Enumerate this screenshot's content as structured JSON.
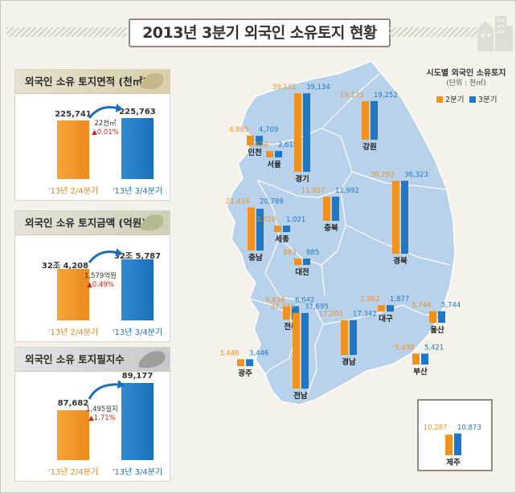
{
  "title": "2013년 3분기 외국인 소유토지 현황",
  "colors": {
    "q2": "#f0921f",
    "q3": "#1e78c6",
    "map": "#b9d2ec"
  },
  "panels": [
    {
      "heading": "외국인 소유 토지면적 (천㎡)",
      "q2_label": "225,741",
      "q3_label": "225,763",
      "q2_value": 225741,
      "q3_value": 225763,
      "diff_line1": "22천㎡",
      "diff_line2": "▲0.01%",
      "cat_q2": "'13년 2/4분기",
      "cat_q3": "'13년 3/4분기"
    },
    {
      "heading": "외국인 소유 토지금액 (억원)",
      "q2_label": "32조 4,208",
      "q3_label": "32조 5,787",
      "q2_value": 324208,
      "q3_value": 325787,
      "diff_line1": "1,579억원",
      "diff_line2": "▲0.49%",
      "cat_q2": "'13년 2/4분기",
      "cat_q3": "'13년 3/4분기"
    },
    {
      "heading": "외국인 소유 토지필지수",
      "q2_label": "87,682",
      "q3_label": "89,177",
      "q2_value": 87682,
      "q3_value": 89177,
      "diff_line1": "1,495필지",
      "diff_line2": "▲1.71%",
      "cat_q2": "'13년 2/4분기",
      "cat_q3": "'13년 3/4분기"
    }
  ],
  "map_legend": {
    "title": "시도별 외국인 소유토지",
    "unit": "(단위 : 천㎡)",
    "q2": "2분기",
    "q3": "3분기"
  },
  "chart_data": {
    "type": "bar",
    "categories": [
      "인천",
      "서울",
      "경기",
      "강원",
      "충남",
      "세종",
      "충북",
      "대전",
      "경북",
      "전북",
      "대구",
      "울산",
      "경남",
      "부산",
      "광주",
      "전남",
      "제주"
    ],
    "series": [
      {
        "name": "2분기",
        "values": [
          4885,
          2629,
          39131,
          19173,
          21434,
          1020,
          11957,
          883,
          36293,
          6638,
          1862,
          5744,
          17200,
          5438,
          3446,
          37721,
          10287
        ]
      },
      {
        "name": "3분기",
        "values": [
          4709,
          2618,
          39134,
          19252,
          20789,
          1021,
          11992,
          885,
          36323,
          6642,
          1877,
          5744,
          17342,
          5421,
          3446,
          37695,
          10873
        ]
      }
    ],
    "value_labels_q2": [
      "4,885",
      "2,629",
      "39,131",
      "19,173",
      "21,434",
      "1,020",
      "11,957",
      "883",
      "36,293",
      "6,638",
      "1,862",
      "5,744",
      "17,200",
      "5,438",
      "3,446",
      "37,721",
      "10,287"
    ],
    "value_labels_q3": [
      "4,709",
      "2,618",
      "39,134",
      "19,252",
      "20,789",
      "1,021",
      "11,992",
      "885",
      "36,323",
      "6,642",
      "1,877",
      "5,744",
      "17,342",
      "5,421",
      "3,446",
      "37,695",
      "10,873"
    ],
    "legend_position": "top-right"
  }
}
